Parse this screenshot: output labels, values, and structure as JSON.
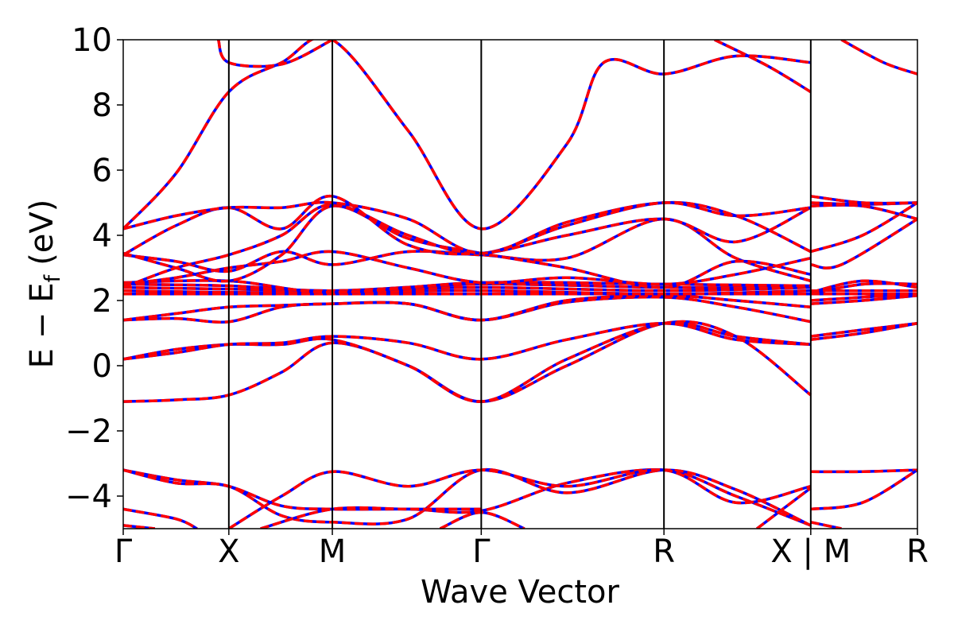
{
  "chart_data": {
    "type": "line",
    "title": "",
    "xlabel": "Wave Vector",
    "ylabel": "E − E_f (eV)",
    "ylabel_parts": {
      "E": "E",
      "minus": "−",
      "E2": "E",
      "sub": "f",
      "unit": "(eV)"
    },
    "ylim": [
      -5,
      10
    ],
    "y_ticks": [
      -4,
      -2,
      0,
      2,
      4,
      6,
      8,
      10
    ],
    "y_tick_labels": [
      "−4",
      "−2",
      "0",
      "2",
      "4",
      "6",
      "8",
      "10"
    ],
    "x_range": [
      0,
      7.52
    ],
    "k_points": [
      {
        "label": "Γ",
        "x": 0.0
      },
      {
        "label": "X",
        "x": 1.0
      },
      {
        "label": "M",
        "x": 1.98
      },
      {
        "label": "Γ",
        "x": 3.39
      },
      {
        "label": "R",
        "x": 5.12
      },
      {
        "label": "X | M",
        "x": 6.51
      },
      {
        "label": "R",
        "x": 7.52
      }
    ],
    "series_colors": {
      "solid": "#0000ff",
      "dashed": "#ff0000"
    },
    "grid": false,
    "legend": "none",
    "bands": [
      [
        [
          0,
          -1.1
        ],
        [
          0.5,
          -1.05
        ],
        [
          1,
          -0.9
        ],
        [
          1.5,
          -0.2
        ],
        [
          1.98,
          0.7
        ],
        [
          2.7,
          0.0
        ],
        [
          3.39,
          -1.1
        ],
        [
          4.2,
          0.0
        ],
        [
          5.12,
          1.3
        ],
        [
          5.8,
          0.9
        ],
        [
          6.51,
          -0.9
        ]
      ],
      [
        [
          0,
          0.2
        ],
        [
          0.5,
          0.5
        ],
        [
          1,
          0.65
        ],
        [
          1.5,
          0.65
        ],
        [
          1.98,
          0.8
        ],
        [
          2.7,
          0.0
        ],
        [
          3.39,
          -1.1
        ],
        [
          4.2,
          0.2
        ],
        [
          5.12,
          1.3
        ],
        [
          5.8,
          0.9
        ],
        [
          6.51,
          0.65
        ]
      ],
      [
        [
          0,
          0.2
        ],
        [
          0.5,
          0.4
        ],
        [
          1,
          0.65
        ],
        [
          1.5,
          0.7
        ],
        [
          1.98,
          0.9
        ],
        [
          2.7,
          0.7
        ],
        [
          3.39,
          0.2
        ],
        [
          4.2,
          0.8
        ],
        [
          5.12,
          1.3
        ],
        [
          5.8,
          0.8
        ],
        [
          6.51,
          0.65
        ]
      ],
      [
        [
          0,
          1.4
        ],
        [
          0.5,
          1.45
        ],
        [
          1,
          1.35
        ],
        [
          1.5,
          1.8
        ],
        [
          1.98,
          1.9
        ],
        [
          2.7,
          1.9
        ],
        [
          3.39,
          1.4
        ],
        [
          4.2,
          1.95
        ],
        [
          5.12,
          2.1
        ],
        [
          5.8,
          1.8
        ],
        [
          6.51,
          1.35
        ]
      ],
      [
        [
          0,
          1.4
        ],
        [
          0.5,
          1.6
        ],
        [
          1,
          1.8
        ],
        [
          1.5,
          1.85
        ],
        [
          1.98,
          1.9
        ],
        [
          2.7,
          1.9
        ],
        [
          3.39,
          1.4
        ],
        [
          4.2,
          2.0
        ],
        [
          5.12,
          2.15
        ],
        [
          5.8,
          2.0
        ],
        [
          6.51,
          1.8
        ]
      ],
      [
        [
          0,
          2.2
        ],
        [
          1,
          2.2
        ],
        [
          1.98,
          2.2
        ],
        [
          3.39,
          2.2
        ],
        [
          5.12,
          2.2
        ],
        [
          6.51,
          2.2
        ]
      ],
      [
        [
          0,
          2.3
        ],
        [
          1,
          2.25
        ],
        [
          1.98,
          2.25
        ],
        [
          3.39,
          2.3
        ],
        [
          5.12,
          2.2
        ],
        [
          6.51,
          2.3
        ]
      ],
      [
        [
          0,
          2.4
        ],
        [
          1,
          2.35
        ],
        [
          1.98,
          2.3
        ],
        [
          3.39,
          2.4
        ],
        [
          5.12,
          2.3
        ],
        [
          6.51,
          2.4
        ]
      ],
      [
        [
          0,
          2.5
        ],
        [
          1,
          2.45
        ],
        [
          1.98,
          2.3
        ],
        [
          3.39,
          2.5
        ],
        [
          5.12,
          2.4
        ],
        [
          6.51,
          2.4
        ]
      ],
      [
        [
          0,
          2.55
        ],
        [
          1,
          2.6
        ],
        [
          1.98,
          2.25
        ],
        [
          3.39,
          2.55
        ],
        [
          5.12,
          2.5
        ],
        [
          6.51,
          2.45
        ]
      ],
      [
        [
          0,
          2.5
        ],
        [
          0.5,
          2.7
        ],
        [
          1,
          3.0
        ],
        [
          1.5,
          3.2
        ],
        [
          1.98,
          3.5
        ],
        [
          2.7,
          3.0
        ],
        [
          3.39,
          2.55
        ],
        [
          4.2,
          2.7
        ],
        [
          5.12,
          2.5
        ],
        [
          5.8,
          2.8
        ],
        [
          6.51,
          3.3
        ]
      ],
      [
        [
          0,
          3.4
        ],
        [
          0.5,
          3.2
        ],
        [
          1,
          2.9
        ],
        [
          1.5,
          3.5
        ],
        [
          1.98,
          3.1
        ],
        [
          2.7,
          3.5
        ],
        [
          3.39,
          3.4
        ],
        [
          4.2,
          3.3
        ],
        [
          5.12,
          4.5
        ],
        [
          5.8,
          3.3
        ],
        [
          6.51,
          2.6
        ]
      ],
      [
        [
          0,
          3.45
        ],
        [
          0.5,
          3.0
        ],
        [
          1,
          2.6
        ],
        [
          1.5,
          3.4
        ],
        [
          1.98,
          4.9
        ],
        [
          2.7,
          3.9
        ],
        [
          3.39,
          3.45
        ],
        [
          4.2,
          3.0
        ],
        [
          5.12,
          2.4
        ],
        [
          5.8,
          3.2
        ],
        [
          6.51,
          2.8
        ]
      ],
      [
        [
          0,
          2.4
        ],
        [
          0.5,
          3.0
        ],
        [
          1,
          3.4
        ],
        [
          1.5,
          4.0
        ],
        [
          1.98,
          4.95
        ],
        [
          2.7,
          4.0
        ],
        [
          3.39,
          3.45
        ],
        [
          4.2,
          4.3
        ],
        [
          5.12,
          5.0
        ],
        [
          5.8,
          4.6
        ],
        [
          6.51,
          3.5
        ]
      ],
      [
        [
          0,
          3.4
        ],
        [
          0.5,
          4.3
        ],
        [
          1,
          4.85
        ],
        [
          1.5,
          4.2
        ],
        [
          1.98,
          5.2
        ],
        [
          2.7,
          3.7
        ],
        [
          3.39,
          3.45
        ],
        [
          4.2,
          4.0
        ],
        [
          5.12,
          4.5
        ],
        [
          5.8,
          3.8
        ],
        [
          6.51,
          4.85
        ]
      ],
      [
        [
          0,
          4.2
        ],
        [
          0.5,
          4.6
        ],
        [
          1,
          4.85
        ],
        [
          1.5,
          4.85
        ],
        [
          1.98,
          5.0
        ],
        [
          2.7,
          4.5
        ],
        [
          3.39,
          3.45
        ],
        [
          4.2,
          4.4
        ],
        [
          5.12,
          5.0
        ],
        [
          5.8,
          4.6
        ],
        [
          6.51,
          4.85
        ]
      ],
      [
        [
          0,
          4.2
        ],
        [
          0.5,
          5.9
        ],
        [
          1,
          8.4
        ],
        [
          1.5,
          9.3
        ],
        [
          1.98,
          10.0
        ],
        [
          2.7,
          7.2
        ],
        [
          3.39,
          4.2
        ],
        [
          4.2,
          6.8
        ],
        [
          4.55,
          9.3
        ],
        [
          5.12,
          8.95
        ],
        [
          5.8,
          9.5
        ],
        [
          6.51,
          9.3
        ]
      ],
      [
        [
          0.9,
          10.0
        ],
        [
          1,
          9.3
        ],
        [
          1.5,
          9.25
        ],
        [
          1.98,
          10.0
        ]
      ],
      [
        [
          5.6,
          10.0
        ],
        [
          6.1,
          9.2
        ],
        [
          6.51,
          8.4
        ]
      ],
      [
        [
          0,
          -3.2
        ],
        [
          0.5,
          -3.5
        ],
        [
          1,
          -3.7
        ],
        [
          1.5,
          -4.3
        ],
        [
          1.98,
          -4.4
        ],
        [
          2.7,
          -4.4
        ],
        [
          3.39,
          -4.45
        ],
        [
          4.2,
          -3.6
        ],
        [
          5.12,
          -3.2
        ],
        [
          5.8,
          -4.0
        ],
        [
          6.51,
          -4.9
        ]
      ],
      [
        [
          0,
          -3.2
        ],
        [
          0.5,
          -3.6
        ],
        [
          1,
          -3.7
        ],
        [
          1.5,
          -4.6
        ],
        [
          1.98,
          -4.8
        ],
        [
          2.7,
          -4.7
        ],
        [
          3.39,
          -3.2
        ],
        [
          4.2,
          -3.9
        ],
        [
          5.12,
          -3.2
        ],
        [
          5.8,
          -3.8
        ],
        [
          6.51,
          -4.9
        ]
      ],
      [
        [
          1,
          -5.0
        ],
        [
          1.5,
          -4.0
        ],
        [
          1.98,
          -3.25
        ],
        [
          2.7,
          -3.7
        ],
        [
          3.39,
          -3.2
        ],
        [
          4.2,
          -3.7
        ],
        [
          5.12,
          -3.2
        ],
        [
          5.8,
          -4.2
        ],
        [
          6.51,
          -3.7
        ]
      ],
      [
        [
          0,
          -4.4
        ],
        [
          0.5,
          -4.7
        ],
        [
          0.7,
          -5.0
        ]
      ],
      [
        [
          0,
          -4.9
        ],
        [
          0.3,
          -5.0
        ]
      ],
      [
        [
          1.3,
          -5.0
        ],
        [
          1.98,
          -4.4
        ],
        [
          2.7,
          -4.4
        ],
        [
          3.39,
          -4.4
        ]
      ],
      [
        [
          3.0,
          -5.0
        ],
        [
          3.39,
          -4.5
        ],
        [
          3.8,
          -5.0
        ]
      ],
      [
        [
          6.0,
          -5.0
        ],
        [
          6.51,
          -3.75
        ]
      ],
      [
        [
          6.51,
          -4.8
        ],
        [
          6.8,
          -5.0
        ]
      ],
      [
        [
          6.51,
          -3.25
        ],
        [
          7.0,
          -3.25
        ],
        [
          7.52,
          -3.2
        ]
      ],
      [
        [
          6.51,
          -4.4
        ],
        [
          7.0,
          -4.2
        ],
        [
          7.52,
          -3.2
        ]
      ],
      [
        [
          6.51,
          0.8
        ],
        [
          7.0,
          1.0
        ],
        [
          7.52,
          1.3
        ]
      ],
      [
        [
          6.51,
          0.9
        ],
        [
          7.0,
          1.1
        ],
        [
          7.52,
          1.3
        ]
      ],
      [
        [
          6.51,
          1.9
        ],
        [
          7.0,
          2.0
        ],
        [
          7.52,
          2.15
        ]
      ],
      [
        [
          6.51,
          2.0
        ],
        [
          7.0,
          2.1
        ],
        [
          7.52,
          2.2
        ]
      ],
      [
        [
          6.51,
          2.2
        ],
        [
          7.0,
          2.2
        ],
        [
          7.52,
          2.2
        ]
      ],
      [
        [
          6.51,
          2.3
        ],
        [
          7.0,
          2.3
        ],
        [
          7.52,
          2.3
        ]
      ],
      [
        [
          6.51,
          2.25
        ],
        [
          7.0,
          2.6
        ],
        [
          7.52,
          2.4
        ]
      ],
      [
        [
          6.51,
          2.2
        ],
        [
          7.0,
          2.5
        ],
        [
          7.52,
          2.5
        ]
      ],
      [
        [
          6.51,
          3.1
        ],
        [
          6.8,
          3.1
        ],
        [
          7.52,
          4.5
        ]
      ],
      [
        [
          6.51,
          3.5
        ],
        [
          7.0,
          4.0
        ],
        [
          7.52,
          5.0
        ]
      ],
      [
        [
          6.51,
          4.9
        ],
        [
          7.0,
          4.9
        ],
        [
          7.52,
          4.5
        ]
      ],
      [
        [
          6.51,
          5.0
        ],
        [
          7.0,
          4.95
        ],
        [
          7.52,
          5.0
        ]
      ],
      [
        [
          6.51,
          5.2
        ],
        [
          7.0,
          5.0
        ],
        [
          7.52,
          5.0
        ]
      ],
      [
        [
          6.8,
          10.0
        ],
        [
          7.2,
          9.3
        ],
        [
          7.52,
          8.95
        ]
      ]
    ]
  }
}
